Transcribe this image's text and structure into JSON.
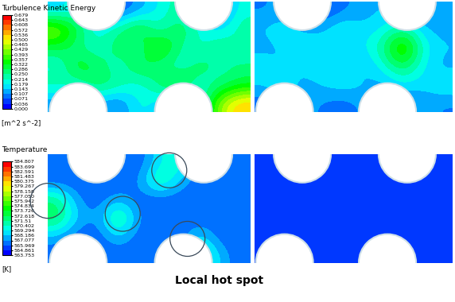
{
  "chart_data": [
    {
      "type": "heatmap",
      "title": "Turbulence Kinetic Energy",
      "unit": "[m^2 s^-2]",
      "tick_labels": false,
      "color_range": [
        0.0,
        0.679
      ],
      "color_ticks": [
        {
          "value": 0.0,
          "label": "0.000"
        },
        0.036,
        0.071,
        0.107,
        0.143,
        0.179,
        0.214,
        {
          "value": 0.25,
          "label": "0.250"
        },
        0.286,
        0.322,
        0.357,
        0.393,
        0.429,
        0.465,
        {
          "value": 0.5,
          "label": "0.500"
        },
        0.536,
        0.572,
        0.608,
        0.643,
        0.679
      ],
      "panels": [
        {
          "cells": [
            [
              0.15,
              0.2,
              0.1,
              0.05,
              0.12,
              0.18,
              0.25,
              0.1,
              0.08,
              0.2
            ],
            [
              0.45,
              0.3,
              0.18,
              0.25,
              0.35,
              0.2,
              0.3,
              0.22,
              0.15,
              0.25
            ],
            [
              0.3,
              0.25,
              0.2,
              0.3,
              0.22,
              0.4,
              0.25,
              0.18,
              0.28,
              0.2
            ],
            [
              0.18,
              0.35,
              0.28,
              0.2,
              0.32,
              0.25,
              0.2,
              0.3,
              0.22,
              0.26
            ],
            [
              0.25,
              0.2,
              0.3,
              0.25,
              0.18,
              0.28,
              0.35,
              0.2,
              0.25,
              0.3
            ],
            [
              0.1,
              0.15,
              0.12,
              0.08,
              0.2,
              0.15,
              0.1,
              0.18,
              0.45,
              0.55
            ]
          ]
        },
        {
          "cells": [
            [
              0.1,
              0.12,
              0.08,
              0.05,
              0.1,
              0.12,
              0.15,
              0.1,
              0.08,
              0.12
            ],
            [
              0.15,
              0.18,
              0.12,
              0.15,
              0.2,
              0.15,
              0.18,
              0.25,
              0.15,
              0.12
            ],
            [
              0.12,
              0.15,
              0.2,
              0.15,
              0.12,
              0.18,
              0.25,
              0.45,
              0.2,
              0.15
            ],
            [
              0.18,
              0.12,
              0.15,
              0.2,
              0.15,
              0.12,
              0.2,
              0.3,
              0.18,
              0.12
            ],
            [
              0.15,
              0.2,
              0.12,
              0.15,
              0.18,
              0.15,
              0.12,
              0.18,
              0.15,
              0.2
            ],
            [
              0.08,
              0.1,
              0.12,
              0.1,
              0.08,
              0.12,
              0.1,
              0.08,
              0.12,
              0.1
            ]
          ]
        }
      ]
    },
    {
      "type": "heatmap",
      "title": "Temperature",
      "unit": "[K]",
      "tick_labels": false,
      "color_range": [
        563.753,
        584.807
      ],
      "color_ticks": [
        563.753,
        564.861,
        565.969,
        567.077,
        568.186,
        569.294,
        570.402,
        571.51,
        572.618,
        573.726,
        574.834,
        575.942,
        {
          "value": 577.05,
          "label": "577.050"
        },
        578.158,
        579.267,
        580.375,
        581.483,
        582.591,
        583.699,
        584.807
      ],
      "annotation": "Local hot spot",
      "panels": [
        {
          "cells": [
            [
              566,
              566,
              566,
              566,
              566,
              569,
              571,
              566,
              566,
              566
            ],
            [
              566,
              566,
              566,
              566,
              567,
              572,
              568,
              566,
              566,
              566
            ],
            [
              572,
              567,
              566,
              568,
              566,
              566,
              566,
              566,
              566,
              566
            ],
            [
              573,
              568,
              567,
              573,
              567,
              566,
              566,
              566,
              566,
              566
            ],
            [
              568,
              566,
              566,
              569,
              566,
              566,
              566,
              569,
              566,
              566
            ],
            [
              566,
              566,
              566,
              566,
              566,
              566,
              566,
              572,
              568,
              566
            ]
          ]
        },
        {
          "cells": [
            [
              565.5,
              565.5,
              565.5,
              565.5,
              565.5,
              565.5,
              565.5,
              565.5,
              565.5,
              565.5
            ],
            [
              565.5,
              565.5,
              565.5,
              565.5,
              565.5,
              565.5,
              565.5,
              565.5,
              565.5,
              565.5
            ],
            [
              565.5,
              565.5,
              565.5,
              566,
              565.5,
              565.5,
              565.5,
              565.5,
              565.5,
              565.5
            ],
            [
              565.5,
              565.5,
              565.5,
              565.5,
              565.5,
              565.5,
              566,
              565.5,
              565.5,
              565.5
            ],
            [
              565.5,
              565.5,
              565.5,
              565.5,
              565.5,
              565.5,
              565.5,
              565.5,
              565.5,
              565.5
            ],
            [
              565.5,
              565.5,
              565.5,
              565.5,
              565.5,
              565.5,
              565.5,
              565.5,
              565.5,
              565.5
            ]
          ]
        }
      ]
    }
  ]
}
